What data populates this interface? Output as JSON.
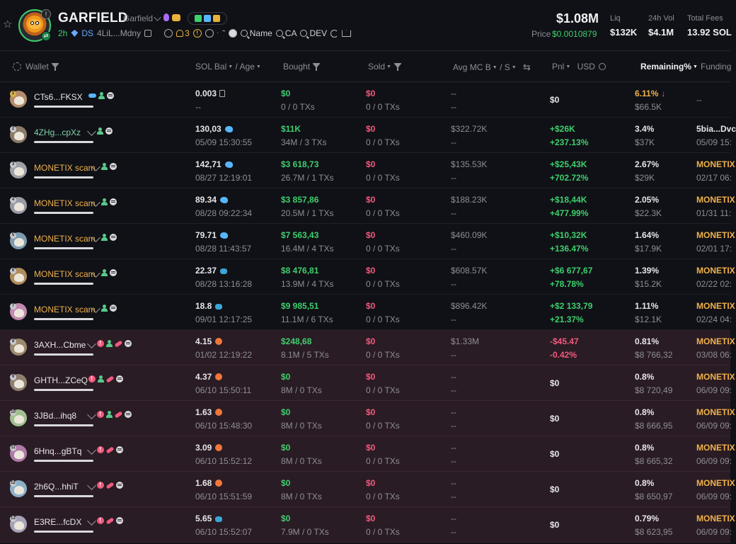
{
  "token": {
    "name": "GARFIELD",
    "subtitle": "Garfield",
    "age": "2h",
    "ds": "DS",
    "address": "4LiL...Mdny",
    "holders_count": "3",
    "search_chips": [
      "Name",
      "CA",
      "DEV"
    ]
  },
  "metrics": {
    "market_cap": "$1.08M",
    "price_label": "Price",
    "price": "$0.0010879",
    "liq_label": "Liq",
    "liq": "$132K",
    "vol_label": "24h Vol",
    "vol": "$4.1M",
    "fees_label": "Total Fees",
    "fees": "13.92 SOL"
  },
  "columns": {
    "wallet": "Wallet",
    "sol_bal": "SOL Bal",
    "age": "/ Age",
    "bought": "Bought",
    "sold": "Sold",
    "avg_mc": "Avg MC B",
    "avg_mc_s": "/ S",
    "pnl": "Pnl",
    "usd": "USD",
    "remaining": "Remaining%",
    "funding": "Funding"
  },
  "rows": [
    {
      "rank": "1",
      "wallet": "CTs6...FKSX",
      "style": "white",
      "sol": "0.003",
      "sol_icon": "box",
      "age": "--",
      "bought": "$0",
      "bought_sub": "0 / 0 TXs",
      "sold": "$0",
      "sold_sub": "0 / 0 TXs",
      "avg_b": "--",
      "avg_s": "--",
      "pnl": "$0",
      "pnl_pct": "",
      "pnl_color": "white",
      "remaining": "6.11%",
      "remaining_sub": "$66.5K",
      "remaining_color": "gold",
      "funding": "--",
      "funding_sub": "",
      "flag": false,
      "tags": [
        "fish",
        "user",
        "circ"
      ]
    },
    {
      "rank": "2",
      "wallet": "4ZHg...cpXz",
      "style": "green",
      "sol": "130,03",
      "sol_icon": "whale",
      "age": "05/09 15:30:55",
      "bought": "$11K",
      "bought_sub": "34M / 3 TXs",
      "sold": "$0",
      "sold_sub": "0 / 0 TXs",
      "avg_b": "$322.72K",
      "avg_s": "--",
      "pnl": "+$26K",
      "pnl_pct": "+237.13%",
      "pnl_color": "green",
      "remaining": "3.4%",
      "remaining_sub": "$37K",
      "remaining_color": "white",
      "funding": "5bia...Dvc",
      "funding_sub": "05/09 15:",
      "flag": false,
      "tags": [
        "pen",
        "user",
        "circ"
      ]
    },
    {
      "rank": "3",
      "wallet": "MONETIX scam",
      "style": "gold",
      "sol": "142,71",
      "sol_icon": "whale",
      "age": "08/27 12:19:01",
      "bought": "$3 618,73",
      "bought_sub": "26.7M / 1 TXs",
      "sold": "$0",
      "sold_sub": "0 / 0 TXs",
      "avg_b": "$135.53K",
      "avg_s": "--",
      "pnl": "+$25,43K",
      "pnl_pct": "+702.72%",
      "pnl_color": "green",
      "remaining": "2.67%",
      "remaining_sub": "$29K",
      "remaining_color": "white",
      "funding": "MONETIX",
      "funding_sub": "02/17 06:",
      "flag": false,
      "tags": [
        "pen",
        "user",
        "circ"
      ]
    },
    {
      "rank": "4",
      "wallet": "MONETIX scam",
      "style": "gold",
      "sol": "89.34",
      "sol_icon": "whale",
      "age": "08/28 09:22:34",
      "bought": "$3 857,86",
      "bought_sub": "20.5M / 1 TXs",
      "sold": "$0",
      "sold_sub": "0 / 0 TXs",
      "avg_b": "$188.23K",
      "avg_s": "--",
      "pnl": "+$18,44K",
      "pnl_pct": "+477.99%",
      "pnl_color": "green",
      "remaining": "2.05%",
      "remaining_sub": "$22.3K",
      "remaining_color": "white",
      "funding": "MONETIX",
      "funding_sub": "01/31 11:",
      "flag": false,
      "tags": [
        "pen",
        "user",
        "circ"
      ]
    },
    {
      "rank": "5",
      "wallet": "MONETIX scam",
      "style": "gold",
      "sol": "79.71",
      "sol_icon": "whale",
      "age": "08/28 11:43:57",
      "bought": "$7 563,43",
      "bought_sub": "16.4M / 4 TXs",
      "sold": "$0",
      "sold_sub": "0 / 0 TXs",
      "avg_b": "$460.09K",
      "avg_s": "--",
      "pnl": "+$10,32K",
      "pnl_pct": "+136.47%",
      "pnl_color": "green",
      "remaining": "1.64%",
      "remaining_sub": "$17.9K",
      "remaining_color": "white",
      "funding": "MONETIX",
      "funding_sub": "02/01 17:",
      "flag": false,
      "tags": [
        "pen",
        "user",
        "circ"
      ]
    },
    {
      "rank": "6",
      "wallet": "MONETIX scam",
      "style": "gold",
      "sol": "22.37",
      "sol_icon": "crab",
      "age": "08/28 13:16:28",
      "bought": "$8 476,81",
      "bought_sub": "13.9M / 4 TXs",
      "sold": "$0",
      "sold_sub": "0 / 0 TXs",
      "avg_b": "$608.57K",
      "avg_s": "--",
      "pnl": "+$6 677,67",
      "pnl_pct": "+78.78%",
      "pnl_color": "green",
      "remaining": "1.39%",
      "remaining_sub": "$15.2K",
      "remaining_color": "white",
      "funding": "MONETIX",
      "funding_sub": "02/22 02:",
      "flag": false,
      "tags": [
        "pen",
        "user",
        "circ"
      ]
    },
    {
      "rank": "7",
      "wallet": "MONETIX scam",
      "style": "gold",
      "sol": "18.8",
      "sol_icon": "crab",
      "age": "09/01 12:17:25",
      "bought": "$9 985,51",
      "bought_sub": "11.1M / 6 TXs",
      "sold": "$0",
      "sold_sub": "0 / 0 TXs",
      "avg_b": "$896.42K",
      "avg_s": "--",
      "pnl": "+$2 133,79",
      "pnl_pct": "+21.37%",
      "pnl_color": "green",
      "remaining": "1.11%",
      "remaining_sub": "$12.1K",
      "remaining_color": "white",
      "funding": "MONETIX",
      "funding_sub": "02/24 04:",
      "flag": false,
      "tags": [
        "pen",
        "user",
        "circ"
      ]
    },
    {
      "rank": "8",
      "wallet": "3AXH...Cbme",
      "style": "white",
      "sol": "4.15",
      "sol_icon": "shrimp",
      "age": "01/02 12:19:22",
      "bought": "$248,68",
      "bought_sub": "8.1M / 5 TXs",
      "sold": "$0",
      "sold_sub": "0 / 0 TXs",
      "avg_b": "$1.33M",
      "avg_s": "--",
      "pnl": "-$45.47",
      "pnl_pct": "-0.42%",
      "pnl_color": "pink",
      "remaining": "0.81%",
      "remaining_sub": "$8 766,32",
      "remaining_color": "white",
      "funding": "MONETIX",
      "funding_sub": "03/08 06:",
      "flag": true,
      "tags": [
        "pen",
        "alert",
        "user",
        "pill",
        "circ"
      ]
    },
    {
      "rank": "9",
      "wallet": "GHTH...ZCeQ",
      "style": "white",
      "sol": "4.37",
      "sol_icon": "shrimp",
      "age": "06/10 15:50:11",
      "bought": "$0",
      "bought_sub": "8M / 0 TXs",
      "sold": "$0",
      "sold_sub": "0 / 0 TXs",
      "avg_b": "--",
      "avg_s": "--",
      "pnl": "$0",
      "pnl_pct": "",
      "pnl_color": "white",
      "remaining": "0.8%",
      "remaining_sub": "$8 720,49",
      "remaining_color": "white",
      "funding": "MONETIX",
      "funding_sub": "06/09 09:",
      "flag": true,
      "tags": [
        "alert",
        "user",
        "pill",
        "circ"
      ]
    },
    {
      "rank": "10",
      "wallet": "3JBd...ihq8",
      "style": "white",
      "sol": "1.63",
      "sol_icon": "shrimp",
      "age": "06/10 15:48:30",
      "bought": "$0",
      "bought_sub": "8M / 0 TXs",
      "sold": "$0",
      "sold_sub": "0 / 0 TXs",
      "avg_b": "--",
      "avg_s": "--",
      "pnl": "$0",
      "pnl_pct": "",
      "pnl_color": "white",
      "remaining": "0.8%",
      "remaining_sub": "$8 666,95",
      "remaining_color": "white",
      "funding": "MONETIX",
      "funding_sub": "06/09 09:",
      "flag": true,
      "tags": [
        "pen",
        "alert",
        "user",
        "pill",
        "circ"
      ]
    },
    {
      "rank": "11",
      "wallet": "6Hnq...gBTq",
      "style": "white",
      "sol": "3.09",
      "sol_icon": "shrimp",
      "age": "06/10 15:52:12",
      "bought": "$0",
      "bought_sub": "8M / 0 TXs",
      "sold": "$0",
      "sold_sub": "0 / 0 TXs",
      "avg_b": "--",
      "avg_s": "--",
      "pnl": "$0",
      "pnl_pct": "",
      "pnl_color": "white",
      "remaining": "0.8%",
      "remaining_sub": "$8 665,32",
      "remaining_color": "white",
      "funding": "MONETIX",
      "funding_sub": "06/09 09:",
      "flag": true,
      "tags": [
        "pen",
        "alert",
        "pill",
        "circ"
      ]
    },
    {
      "rank": "12",
      "wallet": "2h6Q...hhiT",
      "style": "white",
      "sol": "1.68",
      "sol_icon": "shrimp",
      "age": "06/10 15:51:59",
      "bought": "$0",
      "bought_sub": "8M / 0 TXs",
      "sold": "$0",
      "sold_sub": "0 / 0 TXs",
      "avg_b": "--",
      "avg_s": "--",
      "pnl": "$0",
      "pnl_pct": "",
      "pnl_color": "white",
      "remaining": "0.8%",
      "remaining_sub": "$8 650,97",
      "remaining_color": "white",
      "funding": "MONETIX",
      "funding_sub": "06/09 09:",
      "flag": true,
      "tags": [
        "pen",
        "alert",
        "pill",
        "circ"
      ]
    },
    {
      "rank": "13",
      "wallet": "E3RE...fcDX",
      "style": "white",
      "sol": "5.65",
      "sol_icon": "crab",
      "age": "06/10 15:52:07",
      "bought": "$0",
      "bought_sub": "7.9M / 0 TXs",
      "sold": "$0",
      "sold_sub": "0 / 0 TXs",
      "avg_b": "--",
      "avg_s": "--",
      "pnl": "$0",
      "pnl_pct": "",
      "pnl_color": "white",
      "remaining": "0.79%",
      "remaining_sub": "$8 623,95",
      "remaining_color": "white",
      "funding": "MONETIX",
      "funding_sub": "06/09 09:",
      "flag": true,
      "tags": [
        "pen",
        "alert",
        "pill",
        "circ"
      ]
    }
  ]
}
